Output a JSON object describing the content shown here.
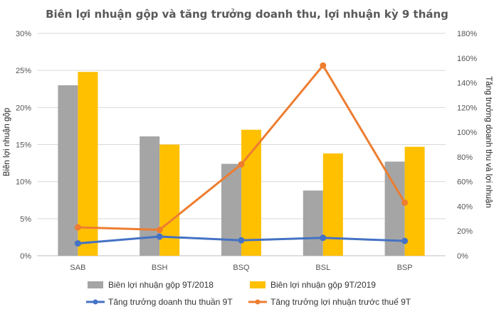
{
  "chart_data": {
    "type": "bar",
    "title": "Biên lợi nhuận gộp và tăng trưởng doanh thu, lợi nhuận kỳ 9 tháng",
    "ylabel": "Biên lợi nhuận gộp",
    "y2label": "Tăng trưởng doanh thu và lợi nhuận",
    "categories": [
      "SAB",
      "BSH",
      "BSQ",
      "BSL",
      "BSP"
    ],
    "ylim": [
      0,
      30
    ],
    "y2lim": [
      0,
      180
    ],
    "yticks": [
      "0%",
      "5%",
      "10%",
      "15%",
      "20%",
      "25%",
      "30%"
    ],
    "y2ticks": [
      "0%",
      "20%",
      "40%",
      "60%",
      "80%",
      "100%",
      "120%",
      "140%",
      "160%",
      "180%"
    ],
    "grid": true,
    "legend_position": "bottom",
    "series": [
      {
        "name": "Biên lợi nhuận gộp 9T/2018",
        "kind": "bar",
        "axis": "left",
        "color": "#a5a5a5",
        "values": [
          23.0,
          16.1,
          12.4,
          8.8,
          12.7
        ]
      },
      {
        "name": "Biên lợi nhuận gộp 9T/2019",
        "kind": "bar",
        "axis": "left",
        "color": "#ffc000",
        "values": [
          24.8,
          15.0,
          17.0,
          13.8,
          14.7
        ]
      },
      {
        "name": "Tăng trưởng doanh thu thuần 9T",
        "kind": "line",
        "axis": "right",
        "color": "#4472c4",
        "values": [
          10,
          15.5,
          12.5,
          14.5,
          12
        ]
      },
      {
        "name": "Tăng trưởng lợi nhuận trước thuế 9T",
        "kind": "line",
        "axis": "right",
        "color": "#ed7d31",
        "values": [
          23,
          21,
          74,
          154,
          43
        ]
      }
    ]
  }
}
